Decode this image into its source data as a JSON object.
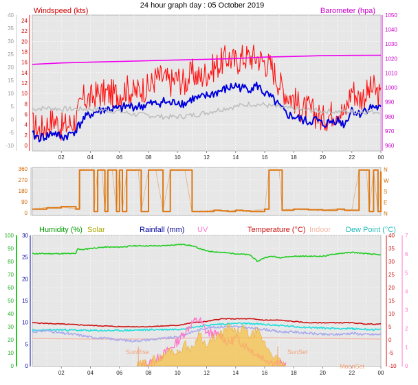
{
  "header": {
    "title": "24 hour graph day : 05 October 2019"
  },
  "colors": {
    "wind_speed": "#ff1010",
    "wind_avg": "#0000dd",
    "wind_gust_gray": "#bdbdbd",
    "barometer": "#ee00ee",
    "direction": "#dd7711",
    "humidity": "#22cc22",
    "solar": "#bbbb00",
    "rainfall": "#000099",
    "uv": "#ff77cc",
    "temperature": "#cc1111",
    "indoor": "#f2b8a8",
    "dewpoint": "#22dddd",
    "plot_bg": "#e7e7e7"
  },
  "chart_data": [
    {
      "type": "line",
      "name": "wind-barometer",
      "title": "24 hour graph day : 05 October 2019",
      "left_label": "Windspeed (kts)",
      "right_label": "Barometer (hpa)",
      "x_ticks": [
        "02",
        "04",
        "06",
        "08",
        "10",
        "12",
        "14",
        "16",
        "18",
        "20",
        "22",
        "00"
      ],
      "left_ticks": [
        "-10",
        "-5",
        "0",
        "5",
        "10",
        "15",
        "20",
        "25",
        "30",
        "35",
        "40"
      ],
      "left_ticks_inner": [
        "0",
        "2",
        "4",
        "6",
        "8",
        "10",
        "12",
        "14",
        "16",
        "18",
        "20",
        "22",
        "24"
      ],
      "right_ticks": [
        "960",
        "970",
        "980",
        "990",
        "1000",
        "1010",
        "1020",
        "1030",
        "1040",
        "1050"
      ],
      "ylim_kts": [
        0,
        24
      ],
      "ylim_hpa": [
        960,
        1050
      ],
      "grid": true,
      "series": [
        {
          "role": "wind_speed",
          "x": [
            0,
            0.5,
            1,
            1.5,
            2,
            2.5,
            3,
            3.5,
            4,
            4.5,
            5,
            5.5,
            6,
            6.5,
            7,
            7.5,
            8,
            8.5,
            9,
            9.5,
            10,
            10.5,
            11,
            11.5,
            12,
            12.5,
            13,
            13.5,
            14,
            14.5,
            15,
            15.5,
            16,
            16.5,
            17,
            17.5,
            18,
            18.5,
            19,
            19.5,
            20,
            20.5,
            21,
            21.5,
            22,
            22.5,
            23,
            23.5,
            24
          ],
          "values": [
            4,
            3,
            4,
            5,
            3.5,
            4,
            5,
            9,
            9,
            10,
            10,
            10,
            10,
            11,
            10,
            11,
            11,
            13,
            13,
            12,
            13,
            12,
            14,
            13,
            14,
            15,
            16,
            17,
            16,
            17,
            17,
            17,
            16,
            15,
            12,
            10,
            9,
            7,
            7,
            6,
            5,
            6,
            7,
            6,
            11,
            9,
            10,
            11,
            9
          ]
        },
        {
          "role": "wind_avg",
          "x": [
            0,
            0.5,
            1,
            1.5,
            2,
            2.5,
            3,
            3.5,
            4,
            4.5,
            5,
            5.5,
            6,
            6.5,
            7,
            7.5,
            8,
            8.5,
            9,
            9.5,
            10,
            10.5,
            11,
            11.5,
            12,
            12.5,
            13,
            13.5,
            14,
            14.5,
            15,
            15.5,
            16,
            16.5,
            17,
            17.5,
            18,
            18.5,
            19,
            19.5,
            20,
            20.5,
            21,
            21.5,
            22,
            22.5,
            23,
            23.5,
            24
          ],
          "values": [
            2,
            1.5,
            1.8,
            2.5,
            1.5,
            2,
            3,
            5,
            6,
            6.5,
            7,
            7,
            7,
            7.5,
            7.5,
            7.5,
            8,
            8,
            8.5,
            8,
            8.5,
            8,
            9,
            9,
            9.5,
            10,
            10.5,
            11,
            11.5,
            11,
            11,
            11.5,
            10,
            9,
            7.5,
            6,
            5.5,
            5,
            4.5,
            5,
            4,
            4.5,
            5,
            4,
            7,
            6,
            7,
            7.5,
            7
          ]
        },
        {
          "role": "wind_gust_gray",
          "x": [
            0,
            1,
            2,
            3,
            4,
            5,
            6,
            7,
            8,
            9,
            10,
            11,
            12,
            13,
            14,
            15,
            16,
            17,
            18,
            19,
            20,
            21,
            22,
            23,
            24
          ],
          "values": [
            7,
            7.2,
            7,
            7,
            7,
            6.8,
            6.5,
            6,
            5.8,
            5.5,
            5.5,
            5.8,
            6.3,
            7,
            7.5,
            8,
            7.8,
            7.3,
            7,
            6.8,
            6.6,
            6.5,
            6.5,
            6.5,
            6.5
          ]
        },
        {
          "role": "barometer",
          "x": [
            0,
            2,
            4,
            6,
            8,
            10,
            12,
            14,
            16,
            18,
            20,
            22,
            24
          ],
          "values": [
            1016,
            1017,
            1017.5,
            1018,
            1018.5,
            1019,
            1019.5,
            1020,
            1021,
            1021.5,
            1022,
            1022.2,
            1022.3
          ]
        }
      ]
    },
    {
      "type": "line",
      "name": "wind-direction",
      "x_ticks": [],
      "left_ticks": [
        "0",
        "90",
        "180",
        "270",
        "360"
      ],
      "right_labels": [
        "N",
        "E",
        "S",
        "W",
        "N"
      ],
      "ylim": [
        0,
        360
      ],
      "series": [
        {
          "role": "direction",
          "x": [
            0,
            1,
            2,
            3,
            3.2,
            3.25,
            3.5,
            4.2,
            4.25,
            4.5,
            4.8,
            5,
            5.2,
            5.5,
            5.8,
            6,
            6.2,
            6.5,
            7,
            7.3,
            7.5,
            8,
            8.5,
            9,
            9.5,
            10.5,
            11,
            11.5,
            12.5,
            13,
            13.5,
            14,
            14.5,
            15,
            16,
            16.3,
            16.5,
            17,
            17.2,
            18,
            19,
            20,
            21,
            21.5,
            22,
            22.5,
            23,
            23.2,
            23.5,
            23.8,
            24
          ],
          "values": [
            30,
            40,
            50,
            30,
            30,
            350,
            350,
            350,
            10,
            350,
            350,
            10,
            350,
            350,
            10,
            350,
            10,
            350,
            350,
            350,
            10,
            350,
            350,
            10,
            350,
            350,
            10,
            10,
            20,
            15,
            10,
            20,
            15,
            10,
            30,
            350,
            350,
            350,
            20,
            30,
            25,
            20,
            30,
            20,
            20,
            350,
            350,
            10,
            350,
            10,
            340
          ]
        }
      ]
    },
    {
      "type": "line",
      "name": "humidity-temperature",
      "left_label": "Humidity (%)",
      "solar_label": "Solar",
      "rain_label": "Rainfall (mm)",
      "uv_label": "UV",
      "temp_label": "Temperature (°C)",
      "indoor_label": "Indoor",
      "dew_label": "Dew Point (°C)",
      "x_ticks": [
        "02",
        "04",
        "06",
        "08",
        "10",
        "12",
        "14",
        "16",
        "18",
        "20",
        "22",
        "00"
      ],
      "hum_ticks": [
        "0",
        "10",
        "20",
        "30",
        "40",
        "50",
        "60",
        "70",
        "80",
        "90",
        "100"
      ],
      "rain_ticks": [
        "0",
        "5",
        "10",
        "15",
        "20",
        "25",
        "30"
      ],
      "temp_ticks": [
        "-10",
        "-5",
        "0",
        "5",
        "10",
        "15",
        "20",
        "25",
        "30",
        "35",
        "40"
      ],
      "uv_ticks": [
        "0",
        "1",
        "2",
        "3",
        "4",
        "5",
        "6",
        "7"
      ],
      "ylim_humidity": [
        0,
        100
      ],
      "ylim_temp": [
        -10,
        40
      ],
      "annotations": [
        "SunRise",
        "SunSet",
        "MoonSet"
      ],
      "series": [
        {
          "role": "humidity",
          "x": [
            0,
            1,
            2,
            3,
            3.1,
            3.4,
            4,
            5,
            6,
            7,
            8,
            9,
            10,
            10.5,
            11,
            12,
            13,
            14,
            15,
            15.5,
            16,
            16.5,
            17,
            18,
            19,
            20,
            21,
            22,
            23,
            24
          ],
          "values": [
            86,
            86,
            86,
            86,
            90,
            89,
            90,
            91,
            91,
            92,
            92,
            92,
            93,
            93,
            92,
            88,
            87,
            86,
            85,
            80,
            83,
            84,
            83,
            84,
            84,
            84,
            86,
            87,
            86,
            85
          ]
        },
        {
          "role": "indoor",
          "x": [
            0,
            4,
            8,
            12,
            16,
            20,
            24
          ],
          "values": [
            21,
            20.5,
            20.5,
            21.5,
            21.5,
            21,
            20.5
          ]
        },
        {
          "role": "temperature",
          "x": [
            0,
            2,
            4,
            6,
            8,
            10,
            11,
            12,
            13,
            14,
            15,
            16,
            17,
            18,
            19,
            20,
            21,
            22,
            23,
            24
          ],
          "values": [
            6.5,
            6,
            5.5,
            5,
            5,
            5.5,
            6.5,
            7,
            8,
            8,
            8,
            7.5,
            7.5,
            7,
            6.5,
            6.5,
            6.5,
            6.5,
            6,
            6
          ]
        },
        {
          "role": "dewpoint",
          "x": [
            0,
            2,
            4,
            6,
            8,
            10,
            12,
            13,
            14,
            15,
            16,
            17,
            18,
            20,
            22,
            24
          ],
          "values": [
            3.5,
            3.8,
            3.5,
            3.5,
            3.8,
            4,
            5.5,
            6,
            6.2,
            6.2,
            5.8,
            5.5,
            5,
            4.5,
            4.2,
            3.8
          ]
        },
        {
          "role": "lower_gray",
          "x": [
            0,
            1,
            2,
            3,
            4,
            5,
            6,
            7,
            8,
            9,
            10,
            11,
            12,
            13,
            14,
            15,
            16,
            17,
            18,
            19,
            20,
            21,
            22,
            23,
            24
          ],
          "values": [
            3,
            3.5,
            2.5,
            2,
            1,
            0.5,
            0,
            -0.5,
            0,
            0.5,
            1,
            3,
            4.5,
            5,
            5,
            4.5,
            4,
            3,
            3,
            2.5,
            2,
            2,
            2.5,
            2,
            2
          ]
        },
        {
          "role": "uv",
          "x": [
            7.5,
            8,
            8.5,
            9,
            9.5,
            10,
            10.5,
            11,
            11.5,
            12,
            12.5,
            13,
            13.5,
            14,
            14.5,
            15,
            15.5,
            16,
            16.5,
            17,
            17.5
          ],
          "values": [
            0,
            0.1,
            0.3,
            0.6,
            0.9,
            1.3,
            1.8,
            2.3,
            2.5,
            1.8,
            1.7,
            1.6,
            1.2,
            1.5,
            1.2,
            0.9,
            0.6,
            0.4,
            0.2,
            0.1,
            0
          ]
        },
        {
          "role": "solar",
          "x": [
            7.2,
            8,
            9,
            9.5,
            10,
            10.5,
            11,
            11.5,
            12,
            12.5,
            13,
            13.5,
            14,
            14.5,
            15,
            15.5,
            16,
            16.5,
            17,
            17.5
          ],
          "values": [
            0,
            3,
            6,
            11,
            8,
            14,
            10,
            22,
            12,
            18,
            20,
            25,
            21,
            24,
            19,
            22,
            14,
            8,
            3,
            0
          ]
        }
      ]
    }
  ]
}
